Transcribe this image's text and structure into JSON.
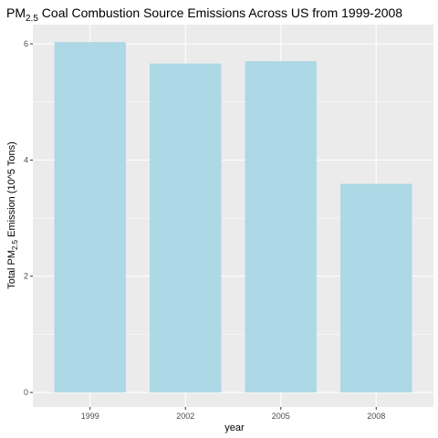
{
  "chart_data": {
    "type": "bar",
    "title": {
      "prefix": "PM",
      "subscript": "2.5",
      "suffix": " Coal Combustion Source Emissions Across US from 1999-2008"
    },
    "xlabel": "year",
    "ylabel": {
      "prefix": "Total PM",
      "subscript": "2.5",
      "suffix": " Emission (10^5 Tons)"
    },
    "categories": [
      "1999",
      "2002",
      "2005",
      "2008"
    ],
    "values": [
      6.03,
      5.66,
      5.7,
      3.59
    ],
    "ylim": [
      -0.25,
      6.33
    ],
    "yticks": [
      0,
      2,
      4,
      6
    ],
    "ytick_labels": [
      "0",
      "2",
      "4",
      "6"
    ],
    "grid": true,
    "legend": "none"
  },
  "colors": {
    "bar_fill": "#add8e6",
    "panel_background": "#ebebeb",
    "grid_major": "#ffffff",
    "tick_color": "#333333",
    "tick_label": "#4d4d4d"
  }
}
